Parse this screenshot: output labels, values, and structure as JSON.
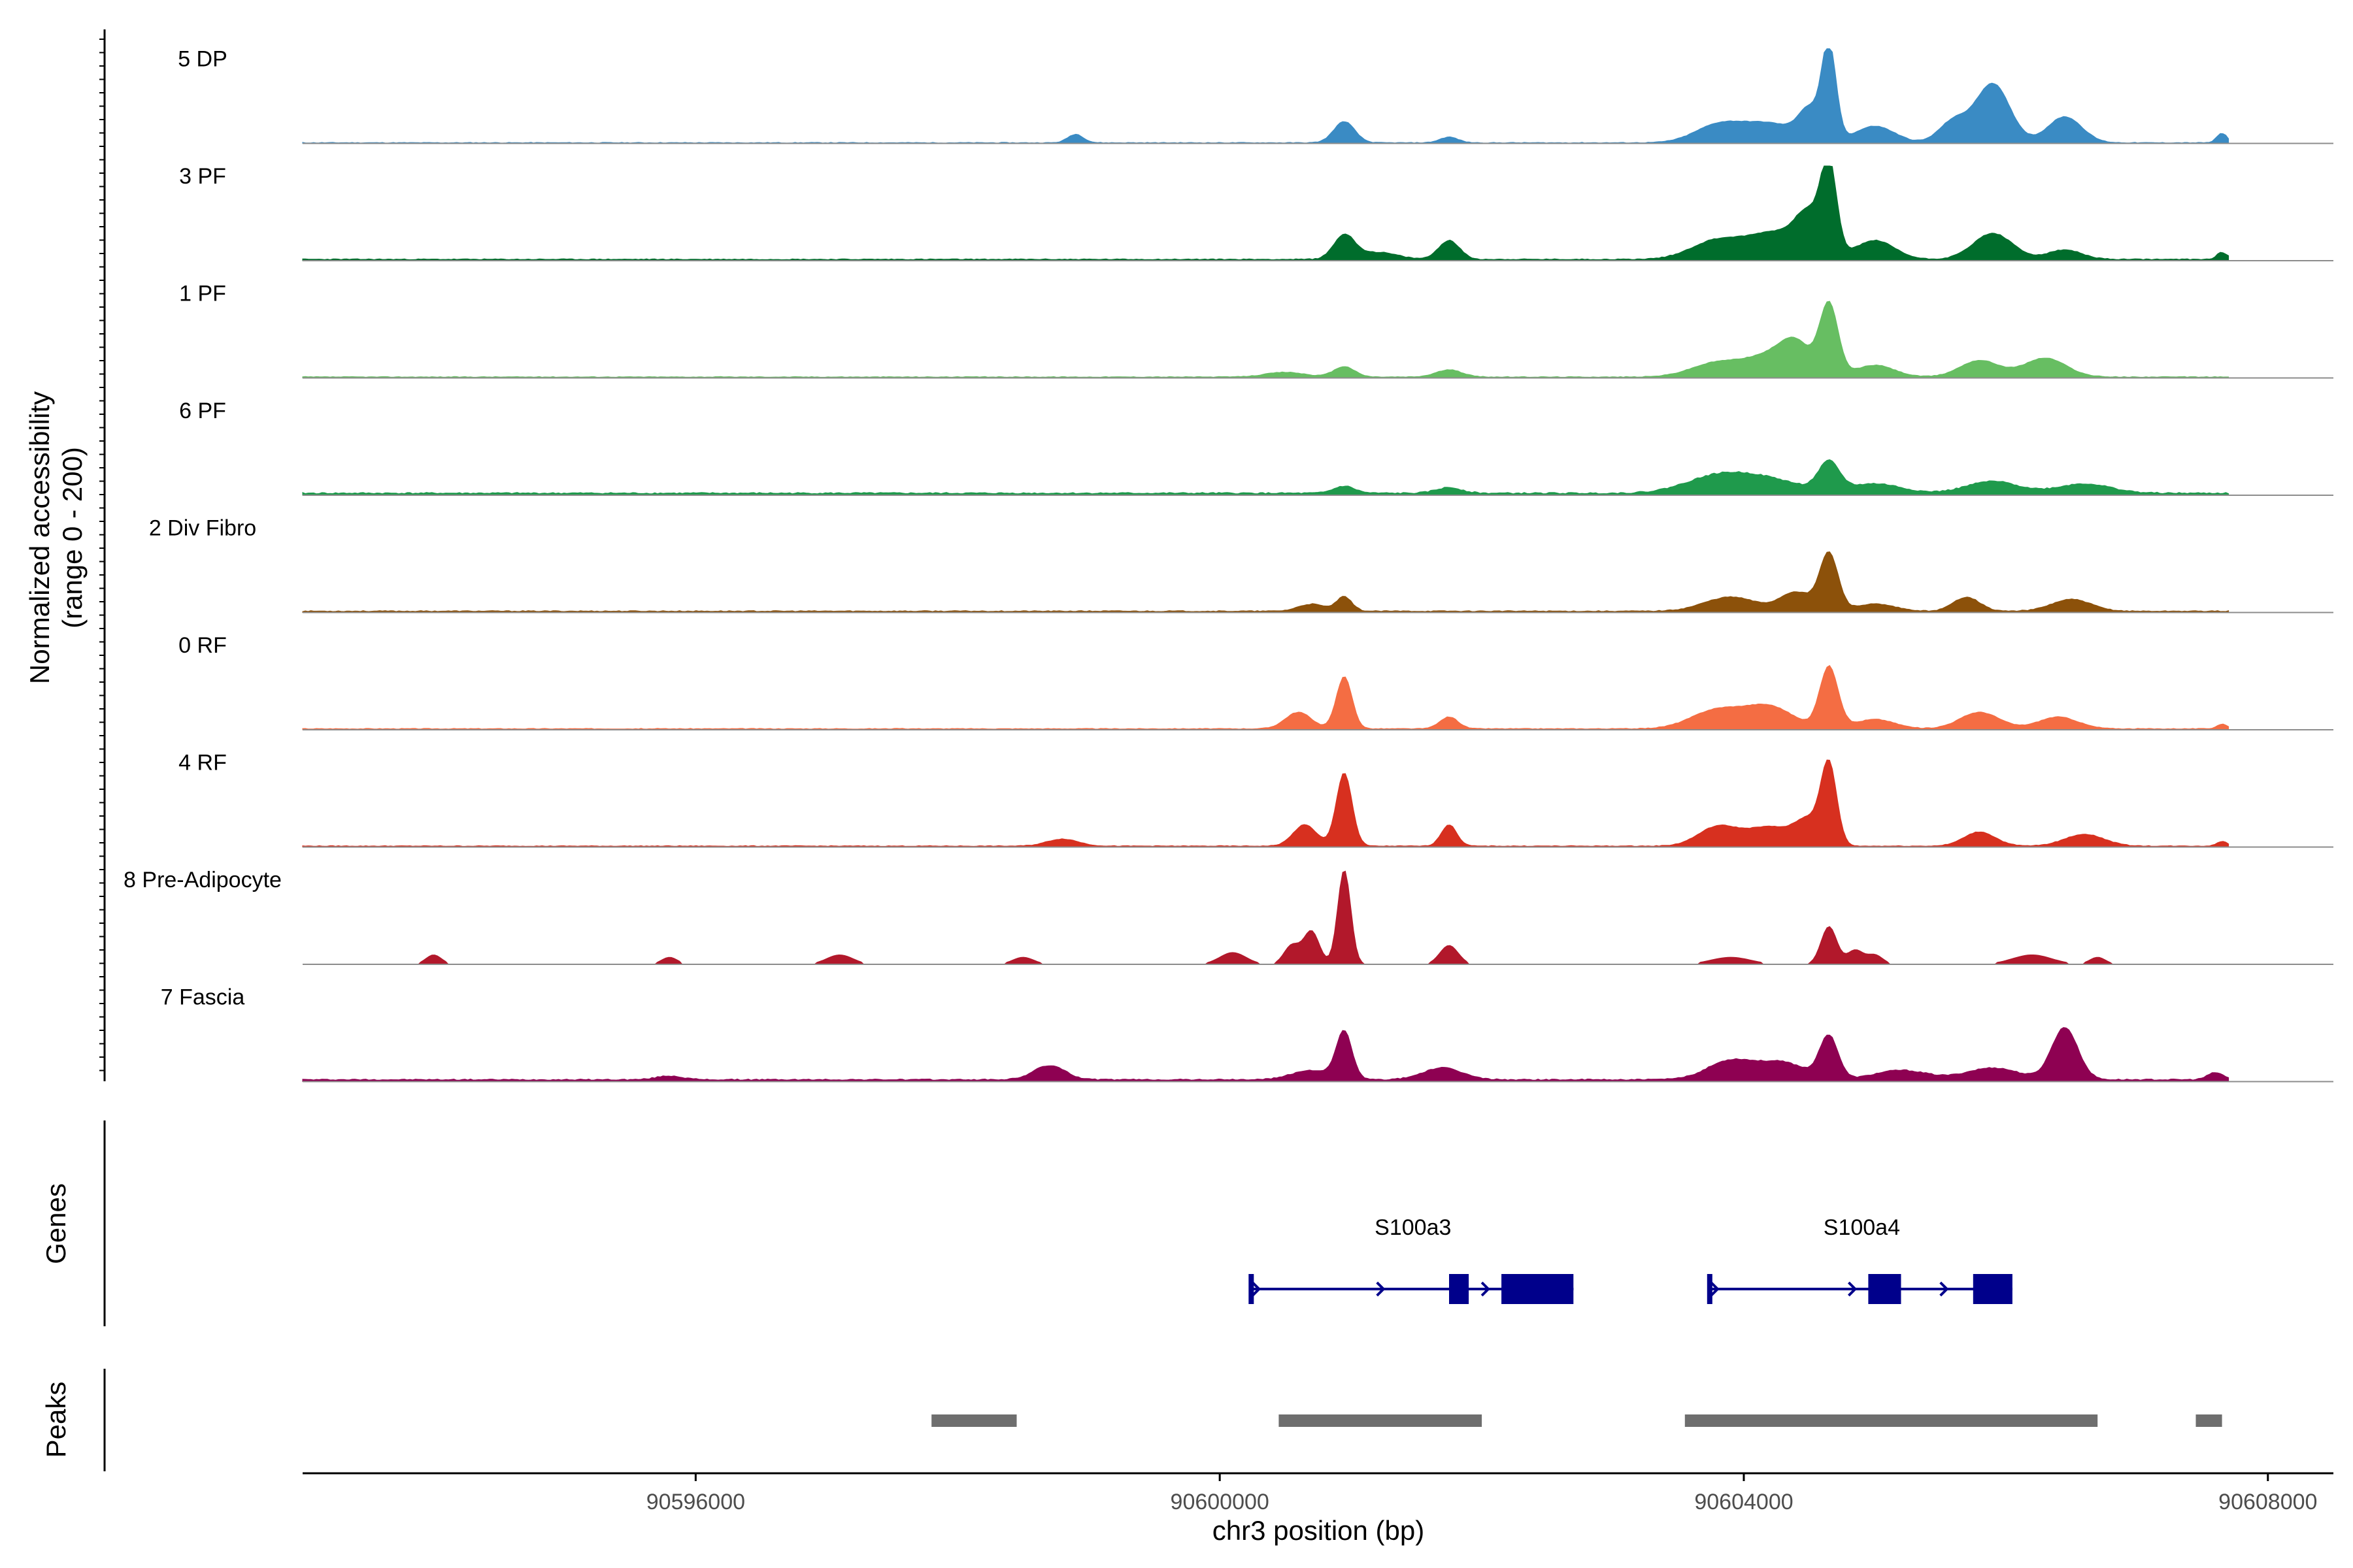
{
  "chart_data": {
    "type": "area",
    "title": "",
    "xlabel": "chr3 position (bp)",
    "ylabel_line1": "Normalized accessibility",
    "ylabel_line2": "(range 0 - 200)",
    "xlim": [
      90593000,
      90608500
    ],
    "xticks": [
      {
        "value": 90596000,
        "label": "90596000"
      },
      {
        "value": 90600000,
        "label": "90600000"
      },
      {
        "value": 90604000,
        "label": "90604000"
      },
      {
        "value": 90608000,
        "label": "90608000"
      }
    ],
    "ylim": [
      0,
      200
    ],
    "track_start": 90593000,
    "track_end": 90607700,
    "tracks": [
      {
        "label": "5 DP",
        "color": "#3A8BC4",
        "baseline": 0.8,
        "noise": 1.5,
        "seed": 11,
        "peaks": [
          [
            90598900,
            60,
            18
          ],
          [
            90600950,
            80,
            45
          ],
          [
            90601750,
            70,
            12
          ],
          [
            90603800,
            180,
            35
          ],
          [
            90604200,
            220,
            40
          ],
          [
            90604650,
            55,
            200
          ],
          [
            90604500,
            80,
            60
          ],
          [
            90605000,
            150,
            35
          ],
          [
            90605600,
            110,
            45
          ],
          [
            90605900,
            130,
            125
          ],
          [
            90606450,
            130,
            55
          ],
          [
            90607650,
            40,
            20
          ]
        ]
      },
      {
        "label": "3 PF",
        "color": "#006D2C",
        "baseline": 2,
        "noise": 2,
        "seed": 23,
        "peaks": [
          [
            90600950,
            80,
            50
          ],
          [
            90601200,
            150,
            15
          ],
          [
            90601750,
            80,
            40
          ],
          [
            90603800,
            200,
            40
          ],
          [
            90604250,
            200,
            55
          ],
          [
            90604650,
            60,
            185
          ],
          [
            90604500,
            100,
            80
          ],
          [
            90605000,
            150,
            40
          ],
          [
            90605900,
            150,
            55
          ],
          [
            90606450,
            130,
            20
          ],
          [
            90607650,
            40,
            15
          ]
        ]
      },
      {
        "label": "1 PF",
        "color": "#67BE62",
        "baseline": 1.5,
        "noise": 1.5,
        "seed": 37,
        "peaks": [
          [
            90600500,
            150,
            10
          ],
          [
            90600950,
            80,
            22
          ],
          [
            90601750,
            100,
            15
          ],
          [
            90603800,
            200,
            30
          ],
          [
            90604200,
            180,
            40
          ],
          [
            90604650,
            70,
            150
          ],
          [
            90604400,
            120,
            60
          ],
          [
            90605000,
            150,
            25
          ],
          [
            90605800,
            150,
            35
          ],
          [
            90606300,
            160,
            40
          ]
        ]
      },
      {
        "label": "6 PF",
        "color": "#1F9A4C",
        "baseline": 3,
        "noise": 3,
        "seed": 41,
        "peaks": [
          [
            90600950,
            80,
            15
          ],
          [
            90601750,
            100,
            12
          ],
          [
            90603800,
            250,
            35
          ],
          [
            90604650,
            80,
            60
          ],
          [
            90604200,
            250,
            25
          ],
          [
            90605000,
            200,
            20
          ],
          [
            90605900,
            200,
            25
          ],
          [
            90606600,
            200,
            20
          ]
        ]
      },
      {
        "label": "2 Div Fibro",
        "color": "#8C510A",
        "baseline": 2,
        "noise": 2,
        "seed": 53,
        "peaks": [
          [
            90600700,
            100,
            15
          ],
          [
            90600950,
            60,
            30
          ],
          [
            90603900,
            200,
            30
          ],
          [
            90604650,
            70,
            120
          ],
          [
            90604400,
            120,
            40
          ],
          [
            90605000,
            150,
            15
          ],
          [
            90605700,
            100,
            30
          ],
          [
            90606500,
            150,
            25
          ]
        ]
      },
      {
        "label": "0 RF",
        "color": "#F46D43",
        "baseline": 1.5,
        "noise": 1.5,
        "seed": 67,
        "peaks": [
          [
            90600600,
            100,
            35
          ],
          [
            90600950,
            60,
            110
          ],
          [
            90601750,
            70,
            25
          ],
          [
            90603800,
            200,
            40
          ],
          [
            90604200,
            180,
            45
          ],
          [
            90604650,
            70,
            130
          ],
          [
            90605000,
            150,
            20
          ],
          [
            90605800,
            150,
            35
          ],
          [
            90606400,
            150,
            25
          ],
          [
            90607650,
            40,
            10
          ]
        ]
      },
      {
        "label": "4 RF",
        "color": "#D7301F",
        "baseline": 1.5,
        "noise": 1.5,
        "seed": 79,
        "peaks": [
          [
            90598800,
            120,
            15
          ],
          [
            90600650,
            90,
            45
          ],
          [
            90600950,
            60,
            155
          ],
          [
            90601750,
            60,
            45
          ],
          [
            90603800,
            150,
            40
          ],
          [
            90604200,
            180,
            40
          ],
          [
            90604650,
            60,
            165
          ],
          [
            90604500,
            100,
            50
          ],
          [
            90605800,
            120,
            30
          ],
          [
            90606600,
            150,
            25
          ],
          [
            90607650,
            40,
            10
          ]
        ]
      },
      {
        "label": "8 Pre-Adipocyte",
        "color": "#B2182B",
        "baseline": 0,
        "noise": 0,
        "seed": 83,
        "peaks": [
          [
            90594000,
            60,
            20
          ],
          [
            90595800,
            60,
            15
          ],
          [
            90597100,
            100,
            20
          ],
          [
            90598500,
            80,
            15
          ],
          [
            90600100,
            100,
            25
          ],
          [
            90600550,
            60,
            40
          ],
          [
            90600700,
            60,
            70
          ],
          [
            90600950,
            50,
            200
          ],
          [
            90601750,
            70,
            40
          ],
          [
            90603900,
            150,
            15
          ],
          [
            90604650,
            60,
            80
          ],
          [
            90604850,
            60,
            30
          ],
          [
            90605000,
            60,
            20
          ],
          [
            90606200,
            150,
            20
          ],
          [
            90606700,
            60,
            15
          ]
        ]
      },
      {
        "label": "7 Fascia",
        "color": "#8E0152",
        "baseline": 3,
        "noise": 2.5,
        "seed": 97,
        "peaks": [
          [
            90595800,
            100,
            8
          ],
          [
            90598700,
            120,
            30
          ],
          [
            90600700,
            150,
            20
          ],
          [
            90600950,
            60,
            100
          ],
          [
            90601700,
            150,
            25
          ],
          [
            90603900,
            180,
            40
          ],
          [
            90604300,
            180,
            35
          ],
          [
            90604650,
            70,
            90
          ],
          [
            90605200,
            200,
            20
          ],
          [
            90605900,
            200,
            25
          ],
          [
            90606450,
            100,
            110
          ],
          [
            90607600,
            60,
            15
          ]
        ]
      }
    ],
    "genes_axis_label": "Genes",
    "genes": [
      {
        "name": "S100a3",
        "start": 90600250,
        "end": 90602700,
        "exons": [
          [
            90600220,
            90600260
          ],
          [
            90601750,
            90601900
          ],
          [
            90602150,
            90602700
          ]
        ],
        "arrows": [
          90600300,
          90601250,
          90602050
        ]
      },
      {
        "name": "S100a4",
        "start": 90603750,
        "end": 90606050,
        "exons": [
          [
            90603720,
            90603760
          ],
          [
            90604950,
            90605200
          ],
          [
            90605750,
            90606050
          ]
        ],
        "arrows": [
          90603800,
          90604850,
          90605550
        ]
      }
    ],
    "gene_color": "#00008B",
    "peaks_axis_label": "Peaks",
    "peak_color": "#6E6E6E",
    "peak_regions": [
      [
        90597800,
        90598450
      ],
      [
        90600450,
        90602000
      ],
      [
        90603550,
        90606700
      ],
      [
        90607450,
        90607650
      ]
    ]
  }
}
